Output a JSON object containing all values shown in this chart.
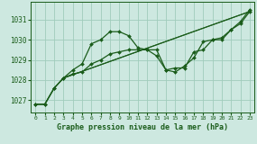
{
  "xlabel": "Graphe pression niveau de la mer (hPa)",
  "background_color": "#cde8e0",
  "grid_color": "#a0ccbb",
  "line_color": "#1a5c1a",
  "xlim": [
    -0.5,
    23.5
  ],
  "ylim": [
    1026.4,
    1031.9
  ],
  "yticks": [
    1027,
    1028,
    1029,
    1030,
    1031
  ],
  "xticks": [
    0,
    1,
    2,
    3,
    4,
    5,
    6,
    7,
    8,
    9,
    10,
    11,
    12,
    13,
    14,
    15,
    16,
    17,
    18,
    19,
    20,
    21,
    22,
    23
  ],
  "line1_x": [
    0,
    1,
    2,
    3,
    4,
    5,
    6,
    7,
    8,
    9,
    10,
    11,
    12,
    13,
    14,
    15,
    16,
    17,
    18,
    19,
    20,
    21,
    22,
    23
  ],
  "line1_y": [
    1026.8,
    1026.8,
    1027.6,
    1028.1,
    1028.5,
    1028.8,
    1029.8,
    1030.0,
    1030.4,
    1030.4,
    1030.2,
    1029.6,
    1029.5,
    1029.2,
    1028.5,
    1028.6,
    1028.6,
    1029.4,
    1029.5,
    1030.0,
    1030.0,
    1030.5,
    1030.8,
    1031.4
  ],
  "line2_x": [
    0,
    1,
    2,
    3,
    4,
    5,
    6,
    7,
    8,
    9,
    10,
    11,
    12,
    13,
    14,
    15,
    16,
    17,
    18,
    19,
    20,
    21,
    22,
    23
  ],
  "line2_y": [
    1026.8,
    1026.8,
    1027.6,
    1028.1,
    1028.3,
    1028.4,
    1028.8,
    1029.0,
    1029.3,
    1029.4,
    1029.5,
    1029.5,
    1029.5,
    1029.5,
    1028.5,
    1028.4,
    1028.7,
    1029.1,
    1029.9,
    1030.0,
    1030.1,
    1030.5,
    1030.9,
    1031.5
  ],
  "line3_x": [
    0,
    1,
    2,
    3,
    23
  ],
  "line3_y": [
    1026.8,
    1026.8,
    1027.6,
    1028.1,
    1031.4
  ],
  "line4_x": [
    3,
    23
  ],
  "line4_y": [
    1028.1,
    1031.4
  ]
}
